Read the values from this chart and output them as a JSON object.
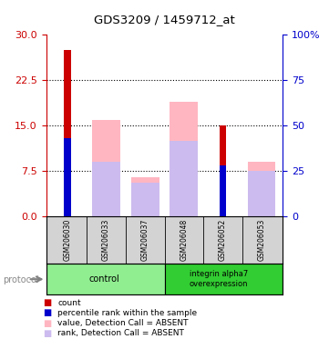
{
  "title": "GDS3209 / 1459712_at",
  "samples": [
    "GSM206030",
    "GSM206033",
    "GSM206037",
    "GSM206048",
    "GSM206052",
    "GSM206053"
  ],
  "red_bars": [
    27.5,
    0,
    0,
    0,
    15.0,
    0
  ],
  "pink_bars": [
    0,
    16.0,
    6.5,
    19.0,
    0,
    9.0
  ],
  "blue_bars": [
    13.0,
    0,
    0,
    0,
    8.5,
    0
  ],
  "lavender_bars": [
    0,
    9.0,
    5.5,
    12.5,
    0,
    7.5
  ],
  "ylim_left": [
    0,
    30
  ],
  "ylim_right": [
    0,
    100
  ],
  "yticks_left": [
    0,
    7.5,
    15,
    22.5,
    30
  ],
  "yticks_right": [
    0,
    25,
    50,
    75,
    100
  ],
  "left_axis_color": "#cc0000",
  "right_axis_color": "#0000cc",
  "control_color": "#90EE90",
  "integrin_color": "#32CD32",
  "sample_bg_color": "#d3d3d3",
  "legend_items": [
    {
      "label": "count",
      "color": "#cc0000"
    },
    {
      "label": "percentile rank within the sample",
      "color": "#0000cc"
    },
    {
      "label": "value, Detection Call = ABSENT",
      "color": "#FFB6C1"
    },
    {
      "label": "rank, Detection Call = ABSENT",
      "color": "#ccbbee"
    }
  ]
}
